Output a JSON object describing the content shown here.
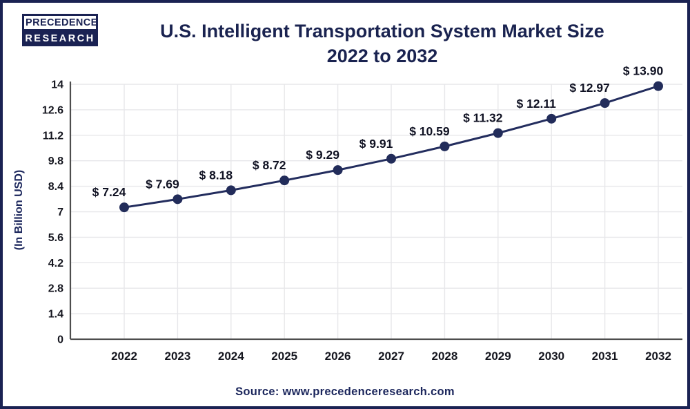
{
  "logo": {
    "line1": "PRECEDENCE",
    "line2": "RESEARCH"
  },
  "title": {
    "line1": "U.S. Intelligent Transportation System Market Size",
    "line2": "2022 to 2032"
  },
  "source": "Source: www.precedenceresearch.com",
  "chart_data": {
    "type": "line",
    "title": "U.S. Intelligent Transportation System Market Size 2022 to 2032",
    "categories": [
      "2022",
      "2023",
      "2024",
      "2025",
      "2026",
      "2027",
      "2028",
      "2029",
      "2030",
      "2031",
      "2032"
    ],
    "values": [
      7.24,
      7.69,
      8.18,
      8.72,
      9.29,
      9.91,
      10.59,
      11.32,
      12.11,
      12.97,
      13.9
    ],
    "point_labels": [
      "$ 7.24",
      "$ 7.69",
      "$ 8.18",
      "$ 8.72",
      "$ 9.29",
      "$ 9.91",
      "$ 10.59",
      "$ 11.32",
      "$ 12.11",
      "$ 12.97",
      "$ 13.90"
    ],
    "xlabel": "",
    "ylabel": "(In Billion USD)",
    "ylim": [
      0,
      14
    ],
    "yticks": [
      0,
      1.4,
      2.8,
      4.2,
      5.6,
      7,
      8.4,
      9.8,
      11.2,
      12.6,
      14
    ],
    "ytick_labels": [
      "0",
      "1.4",
      "2.8",
      "4.2",
      "5.6",
      "7",
      "8.4",
      "9.8",
      "11.2",
      "12.6",
      "14"
    ],
    "grid": "on",
    "legend": "none",
    "line_color": "#232d5e",
    "marker_color": "#222c5a",
    "grid_color": "#e7e7ea",
    "axis_color": "#4d4d4d",
    "tick_label_color": "#15161f",
    "data_label_color": "#101223"
  }
}
